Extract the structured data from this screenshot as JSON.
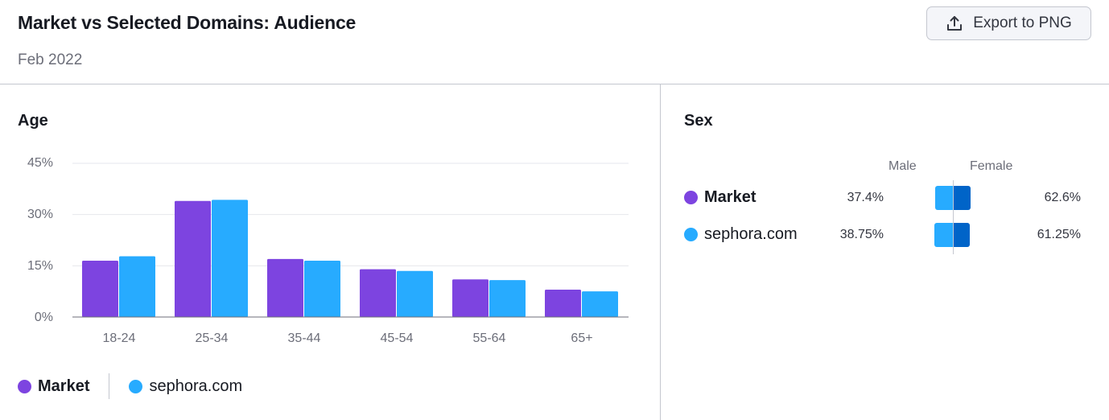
{
  "header": {
    "title": "Market vs Selected Domains: Audience",
    "subtitle": "Feb 2022",
    "export_label": "Export to PNG"
  },
  "age": {
    "title": "Age",
    "legend": [
      {
        "name": "Market",
        "color": "#7d44e0"
      },
      {
        "name": "sephora.com",
        "color": "#27abff"
      }
    ]
  },
  "sex": {
    "title": "Sex",
    "male_label": "Male",
    "female_label": "Female",
    "male_color": "#27abff",
    "female_color": "#0064c8",
    "rows": [
      {
        "name": "Market",
        "color": "#7d44e0",
        "male": "37.4%",
        "female": "62.6%"
      },
      {
        "name": "sephora.com",
        "color": "#27abff",
        "male": "38.75%",
        "female": "61.25%"
      }
    ]
  },
  "chart_data": [
    {
      "type": "bar",
      "title": "Age",
      "categories": [
        "18-24",
        "25-34",
        "35-44",
        "45-54",
        "55-64",
        "65+"
      ],
      "series": [
        {
          "name": "Market",
          "color": "#7d44e0",
          "values": [
            16.5,
            34,
            17,
            14,
            11,
            8
          ]
        },
        {
          "name": "sephora.com",
          "color": "#27abff",
          "values": [
            17.8,
            34.3,
            16.5,
            13.5,
            10.8,
            7.5
          ]
        }
      ],
      "yticks": [
        "0%",
        "15%",
        "30%",
        "45%"
      ],
      "ylim": [
        0,
        45
      ],
      "grid": true,
      "legend": "bottom-left"
    },
    {
      "type": "bar",
      "title": "Sex",
      "categories": [
        "Market",
        "sephora.com"
      ],
      "series": [
        {
          "name": "Male",
          "values": [
            37.4,
            38.75
          ]
        },
        {
          "name": "Female",
          "values": [
            62.6,
            61.25
          ]
        }
      ],
      "stacked": true
    }
  ]
}
